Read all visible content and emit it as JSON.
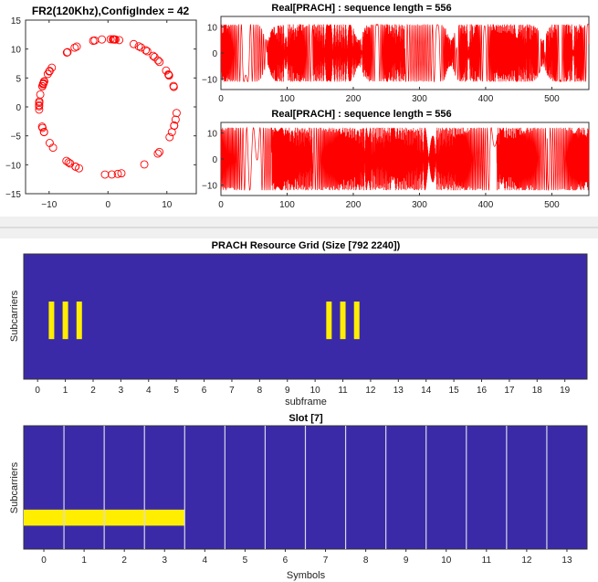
{
  "chart_data": [
    {
      "id": "constellation",
      "type": "scatter",
      "title": "FR2(120Khz),ConfigIndex = 42",
      "xlim": [
        -14,
        15
      ],
      "ylim": [
        -15,
        15
      ],
      "xticks": [
        -10,
        0,
        10
      ],
      "yticks": [
        15,
        10,
        5,
        0,
        -5,
        -10,
        -15
      ],
      "marker_color": "#ff0000",
      "radius": 11.7,
      "num_points": 72
    },
    {
      "id": "real-prach-1",
      "type": "line",
      "title": "Real[PRACH] : sequence length = 556",
      "xlim": [
        0,
        556
      ],
      "ylim": [
        -14,
        14
      ],
      "xticks": [
        0,
        100,
        200,
        300,
        400,
        500
      ],
      "yticks": [
        10,
        0,
        -10
      ],
      "line_color": "#ff0000",
      "pattern": "symmetric"
    },
    {
      "id": "real-prach-2",
      "type": "line",
      "title": "Real[PRACH] : sequence length = 556",
      "xlim": [
        0,
        556
      ],
      "ylim": [
        -14,
        14
      ],
      "xticks": [
        0,
        100,
        200,
        300,
        400,
        500
      ],
      "yticks": [
        10,
        0,
        -10
      ],
      "line_color": "#ff0000",
      "pattern": "dense"
    },
    {
      "id": "resource-grid",
      "type": "heatmap",
      "title": "PRACH Resource Grid (Size [792 2240])",
      "xlabel": "subframe",
      "ylabel": "Subcarriers",
      "xlim": [
        -0.5,
        19.8
      ],
      "xticks": [
        0,
        1,
        2,
        3,
        4,
        5,
        6,
        7,
        8,
        9,
        10,
        11,
        12,
        13,
        14,
        15,
        16,
        17,
        18,
        19
      ],
      "background_color": "#3a2aa8",
      "fill_color": "#ffee00",
      "bars": [
        0.5,
        1.0,
        1.5,
        10.5,
        11.0,
        11.5
      ],
      "bar_y_range": [
        0.38,
        0.68
      ]
    },
    {
      "id": "slot",
      "type": "heatmap",
      "title": "Slot [7]",
      "xlabel": "Symbols",
      "ylabel": "Subcarriers",
      "xlim": [
        -0.5,
        13.5
      ],
      "xticks": [
        0,
        1,
        2,
        3,
        4,
        5,
        6,
        7,
        8,
        9,
        10,
        11,
        12,
        13
      ],
      "background_color": "#3a2aa8",
      "fill_color": "#ffee00",
      "grid_color": "#d8d8e8",
      "filled_symbols": [
        -0.5,
        3.5
      ],
      "fill_y_range": [
        0.19,
        0.32
      ]
    }
  ]
}
